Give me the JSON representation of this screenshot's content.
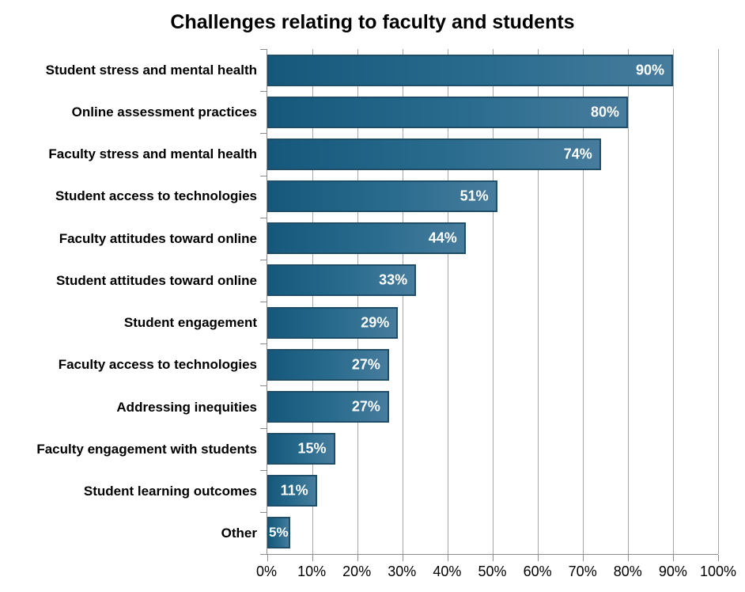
{
  "page": {
    "background": "#FFFFFF"
  },
  "chart_data": {
    "type": "bar",
    "orientation": "horizontal",
    "title": "Challenges relating to faculty and students",
    "categories": [
      "Student stress and mental health",
      "Online assessment practices",
      "Faculty stress and mental health",
      "Student access to technologies",
      "Faculty attitudes toward online",
      "Student attitudes toward online",
      "Student engagement",
      "Faculty access to technologies",
      "Addressing inequities",
      "Faculty engagement with students",
      "Student learning outcomes",
      "Other"
    ],
    "values": [
      90,
      80,
      74,
      51,
      44,
      33,
      29,
      27,
      27,
      15,
      11,
      5
    ],
    "value_labels": [
      "90%",
      "80%",
      "74%",
      "51%",
      "44%",
      "33%",
      "29%",
      "27%",
      "27%",
      "15%",
      "11%",
      "5%"
    ],
    "xlabel": "",
    "ylabel": "",
    "xlim": [
      0,
      100
    ],
    "x_ticks": [
      "0%",
      "10%",
      "20%",
      "30%",
      "40%",
      "50%",
      "60%",
      "70%",
      "80%",
      "90%",
      "100%"
    ],
    "grid": true,
    "legend": false,
    "colors": {
      "background": "#FFFFFF",
      "bar_gradient_start": "#15587B",
      "bar_gradient_end": "#477C9D",
      "bar_border": "#1F4E6B",
      "gridline": "#A6A6A6",
      "axis_line": "#8C8C8C",
      "text": "#000000",
      "value_label_text": "#FFFFFF"
    }
  }
}
